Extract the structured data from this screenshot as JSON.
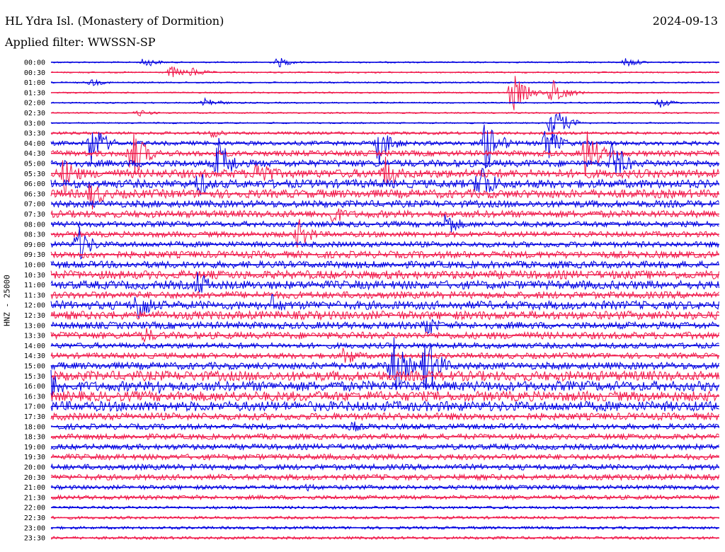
{
  "header": {
    "title": "HL Ydra Isl. (Monastery of Dormition)",
    "date": "2024-09-13",
    "filter": "Applied filter: WWSSN-SP"
  },
  "colors": {
    "trace_a": "#0000e0",
    "trace_b": "#f0184a"
  },
  "chart_data": {
    "type": "line",
    "ylabel": "HNZ - 25000",
    "rows": [
      "00:00",
      "00:30",
      "01:00",
      "01:30",
      "02:00",
      "02:30",
      "03:00",
      "03:30",
      "04:00",
      "04:30",
      "05:00",
      "05:30",
      "06:00",
      "06:30",
      "07:00",
      "07:30",
      "08:00",
      "08:30",
      "09:00",
      "09:30",
      "10:00",
      "10:30",
      "11:00",
      "11:30",
      "12:00",
      "12:30",
      "13:00",
      "13:30",
      "14:00",
      "14:30",
      "15:00",
      "15:30",
      "16:00",
      "16:30",
      "17:00",
      "17:30",
      "18:00",
      "18:30",
      "19:00",
      "19:30",
      "20:00",
      "20:30",
      "21:00",
      "21:30",
      "22:00",
      "22:30",
      "23:00",
      "23:30"
    ],
    "noise_level": [
      1,
      1,
      1,
      1,
      1,
      1,
      1,
      2,
      3,
      4,
      5,
      6,
      6,
      6,
      5,
      5,
      4,
      4,
      4,
      5,
      5,
      6,
      6,
      5,
      6,
      6,
      5,
      5,
      4,
      4,
      5,
      7,
      7,
      7,
      7,
      5,
      4,
      4,
      4,
      4,
      4,
      4,
      3,
      3,
      2,
      2,
      2,
      2
    ],
    "events": [
      {
        "row": 0,
        "x": 0.14,
        "amp": 8
      },
      {
        "row": 0,
        "x": 0.34,
        "amp": 8
      },
      {
        "row": 0,
        "x": 0.86,
        "amp": 8
      },
      {
        "row": 1,
        "x": 0.18,
        "amp": 10
      },
      {
        "row": 1,
        "x": 0.21,
        "amp": 8
      },
      {
        "row": 2,
        "x": 0.06,
        "amp": 6
      },
      {
        "row": 3,
        "x": 0.69,
        "amp": 30
      },
      {
        "row": 3,
        "x": 0.75,
        "amp": 22
      },
      {
        "row": 4,
        "x": 0.23,
        "amp": 10
      },
      {
        "row": 4,
        "x": 0.91,
        "amp": 8
      },
      {
        "row": 5,
        "x": 0.13,
        "amp": 6
      },
      {
        "row": 6,
        "x": 0.75,
        "amp": 28
      },
      {
        "row": 7,
        "x": 0.24,
        "amp": 8
      },
      {
        "row": 8,
        "x": 0.06,
        "amp": 35
      },
      {
        "row": 8,
        "x": 0.49,
        "amp": 30
      },
      {
        "row": 8,
        "x": 0.65,
        "amp": 40
      },
      {
        "row": 8,
        "x": 0.74,
        "amp": 30
      },
      {
        "row": 9,
        "x": 0.12,
        "amp": 45
      },
      {
        "row": 9,
        "x": 0.8,
        "amp": 40
      },
      {
        "row": 10,
        "x": 0.25,
        "amp": 40
      },
      {
        "row": 10,
        "x": 0.84,
        "amp": 35
      },
      {
        "row": 11,
        "x": 0.02,
        "amp": 30
      },
      {
        "row": 11,
        "x": 0.31,
        "amp": 30
      },
      {
        "row": 11,
        "x": 0.5,
        "amp": 28
      },
      {
        "row": 12,
        "x": 0.22,
        "amp": 22
      },
      {
        "row": 12,
        "x": 0.64,
        "amp": 40
      },
      {
        "row": 13,
        "x": 0.06,
        "amp": 25
      },
      {
        "row": 15,
        "x": 0.42,
        "amp": 18
      },
      {
        "row": 16,
        "x": 0.59,
        "amp": 22
      },
      {
        "row": 17,
        "x": 0.37,
        "amp": 24
      },
      {
        "row": 18,
        "x": 0.04,
        "amp": 30
      },
      {
        "row": 22,
        "x": 0.22,
        "amp": 22
      },
      {
        "row": 24,
        "x": 0.13,
        "amp": 30
      },
      {
        "row": 24,
        "x": 0.33,
        "amp": 18
      },
      {
        "row": 26,
        "x": 0.56,
        "amp": 20
      },
      {
        "row": 27,
        "x": 0.14,
        "amp": 14
      },
      {
        "row": 29,
        "x": 0.44,
        "amp": 18
      },
      {
        "row": 30,
        "x": 0.51,
        "amp": 50
      },
      {
        "row": 30,
        "x": 0.56,
        "amp": 50
      },
      {
        "row": 32,
        "x": 0.0,
        "amp": 26
      },
      {
        "row": 32,
        "x": 0.16,
        "amp": 16
      },
      {
        "row": 36,
        "x": 0.45,
        "amp": 10
      },
      {
        "row": 42,
        "x": 0.38,
        "amp": 8
      }
    ]
  }
}
